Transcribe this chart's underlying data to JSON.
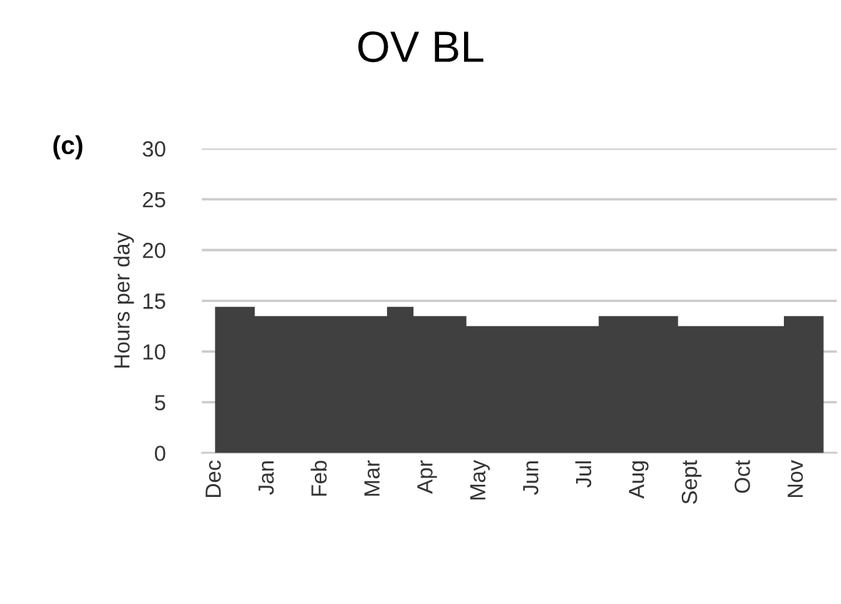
{
  "chart_data": {
    "type": "area",
    "title": "OV BL",
    "ylabel": "Hours per day",
    "annotations": [
      "(c)"
    ],
    "categories": [
      "Dec",
      null,
      "Jan",
      null,
      "Feb",
      null,
      "Mar",
      null,
      "Apr",
      null,
      "May",
      null,
      "Jun",
      null,
      "Jul",
      null,
      "Aug",
      null,
      "Sept",
      null,
      "Oct",
      null,
      "Nov",
      null
    ],
    "values": [
      14.4,
      14.4,
      13.5,
      13.5,
      13.5,
      13.5,
      13.5,
      14.4,
      13.5,
      13.5,
      12.5,
      12.5,
      12.5,
      12.5,
      12.5,
      13.5,
      13.5,
      13.5,
      12.5,
      12.5,
      12.5,
      12.5,
      13.5,
      13.5
    ],
    "color": "#404040",
    "ylim": [
      0,
      30
    ],
    "yticks": [
      0,
      5,
      10,
      15,
      20,
      25,
      30
    ],
    "grid": "y"
  }
}
